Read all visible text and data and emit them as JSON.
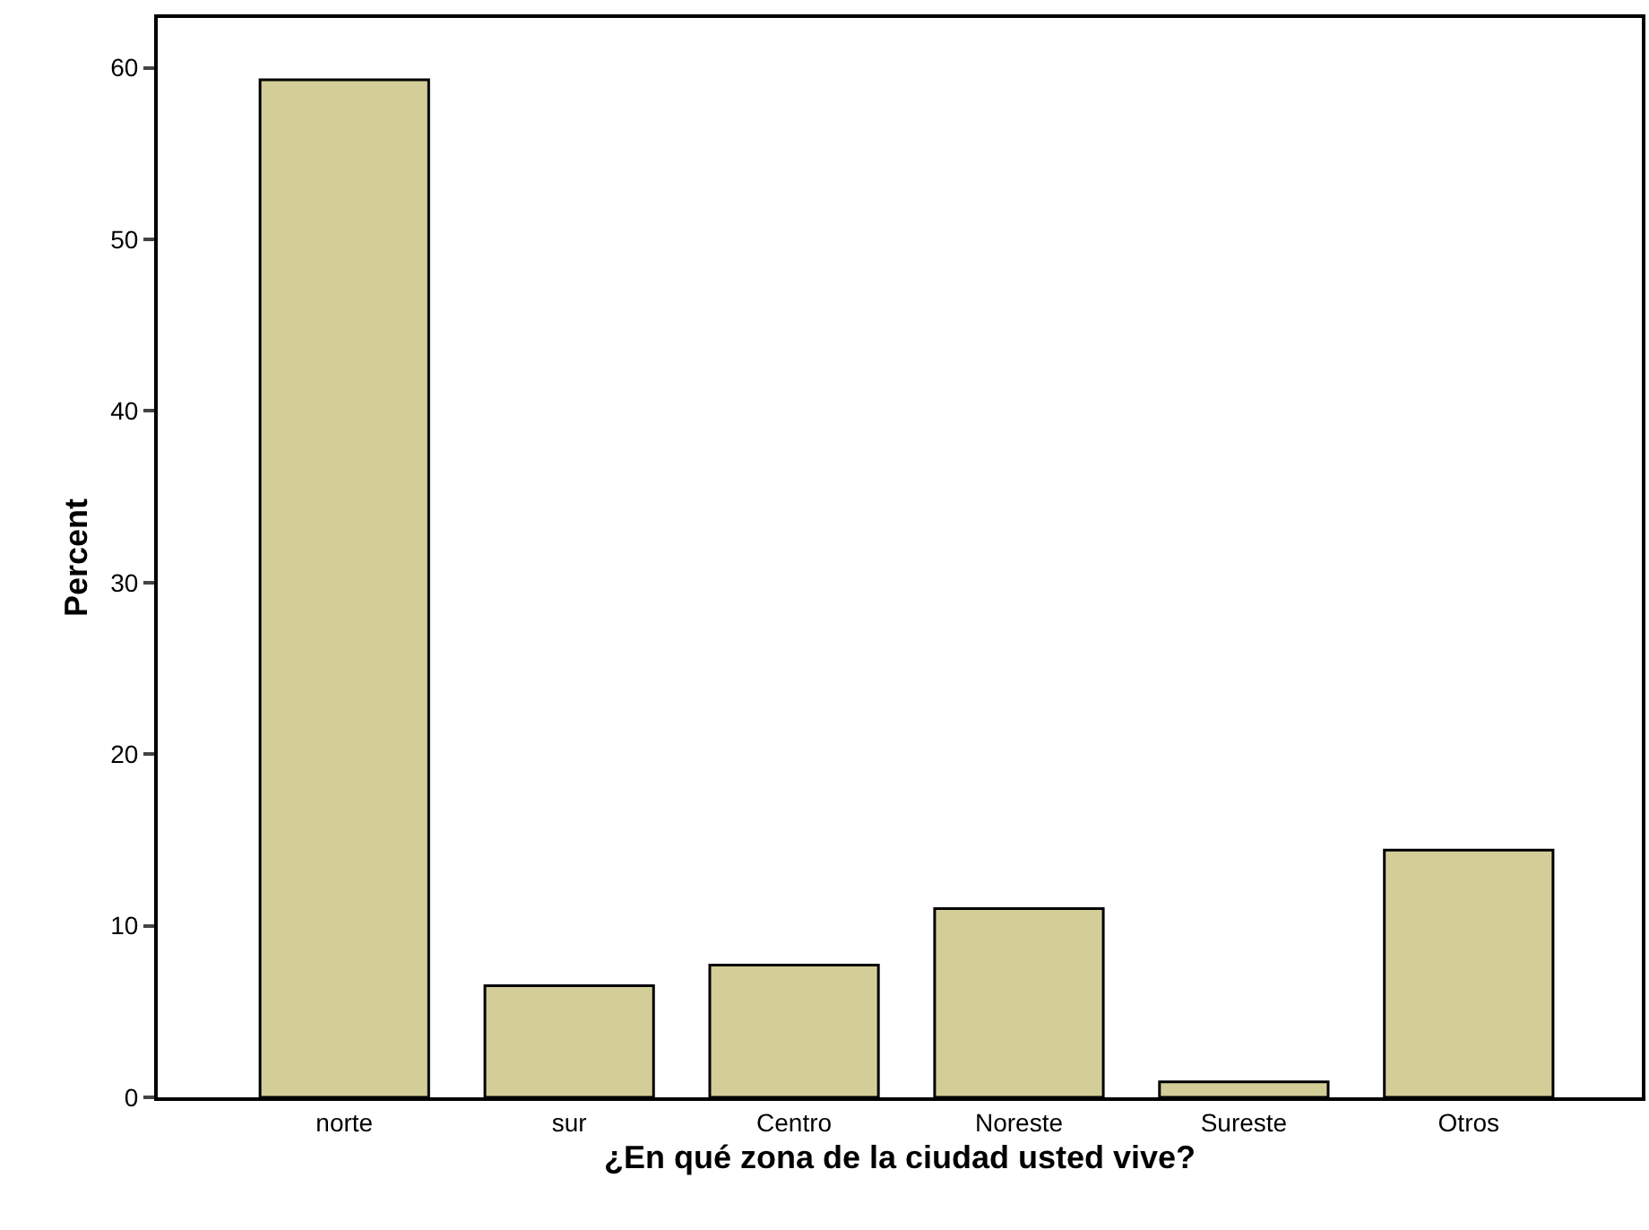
{
  "chart_data": {
    "type": "bar",
    "xlabel": "¿En qué zona de la ciudad usted vive?",
    "ylabel": "Percent",
    "categories": [
      "norte",
      "sur",
      "Centro",
      "Noreste",
      "Sureste",
      "Otros"
    ],
    "values": [
      59.3,
      6.5,
      7.7,
      11.0,
      0.9,
      14.4
    ],
    "color": "#d3cd98",
    "ylim": [
      0,
      62.9
    ],
    "yticks": [
      0,
      10,
      20,
      30,
      40,
      50,
      60
    ]
  }
}
